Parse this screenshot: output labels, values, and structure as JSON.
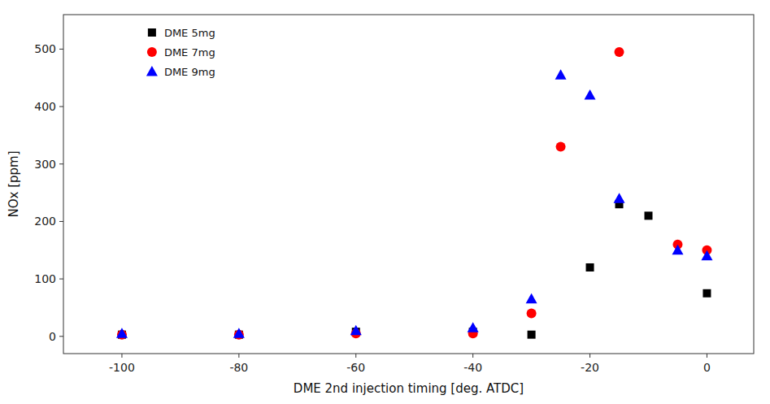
{
  "chart_data": {
    "type": "scatter",
    "xlabel": "DME 2nd injection timing [deg. ATDC]",
    "ylabel": "NOx [ppm]",
    "xlim": [
      -110,
      8
    ],
    "ylim": [
      -30,
      560
    ],
    "xticks": [
      -100,
      -80,
      -60,
      -40,
      -20,
      0
    ],
    "yticks": [
      0,
      100,
      200,
      300,
      400,
      500
    ],
    "grid": false,
    "legend": "upper left",
    "series": [
      {
        "name": "DME 5mg",
        "color": "black",
        "marker": "square",
        "x": [
          -100,
          -80,
          -60,
          -40,
          -30,
          -20,
          -15,
          -10,
          0
        ],
        "values": [
          3,
          3,
          8,
          8,
          3,
          120,
          230,
          210,
          75
        ]
      },
      {
        "name": "DME 7mg",
        "color": "red",
        "marker": "circle",
        "x": [
          -100,
          -80,
          -60,
          -40,
          -30,
          -25,
          -15,
          -5,
          0
        ],
        "values": [
          3,
          3,
          5,
          5,
          40,
          330,
          495,
          160,
          150
        ]
      },
      {
        "name": "DME 9mg",
        "color": "blue",
        "marker": "triangle",
        "x": [
          -100,
          -80,
          -60,
          -40,
          -30,
          -25,
          -20,
          -15,
          -5,
          0
        ],
        "values": [
          5,
          5,
          10,
          15,
          65,
          455,
          420,
          240,
          150,
          140
        ]
      }
    ]
  }
}
